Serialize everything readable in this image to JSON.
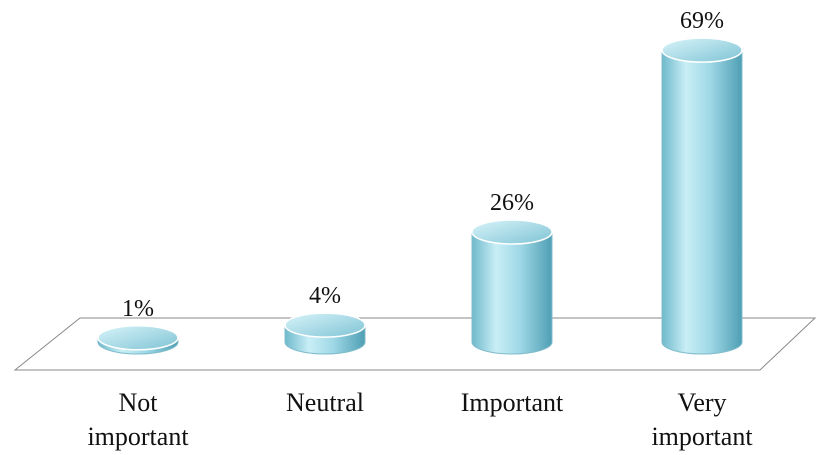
{
  "chart_data": {
    "type": "bar3d",
    "categories": [
      "Not important",
      "Neutral",
      "Important",
      "Very important"
    ],
    "values": [
      1,
      4,
      26,
      69
    ],
    "value_labels": [
      "1%",
      "4%",
      "26%",
      "69%"
    ],
    "color": "#9fd8e6"
  }
}
